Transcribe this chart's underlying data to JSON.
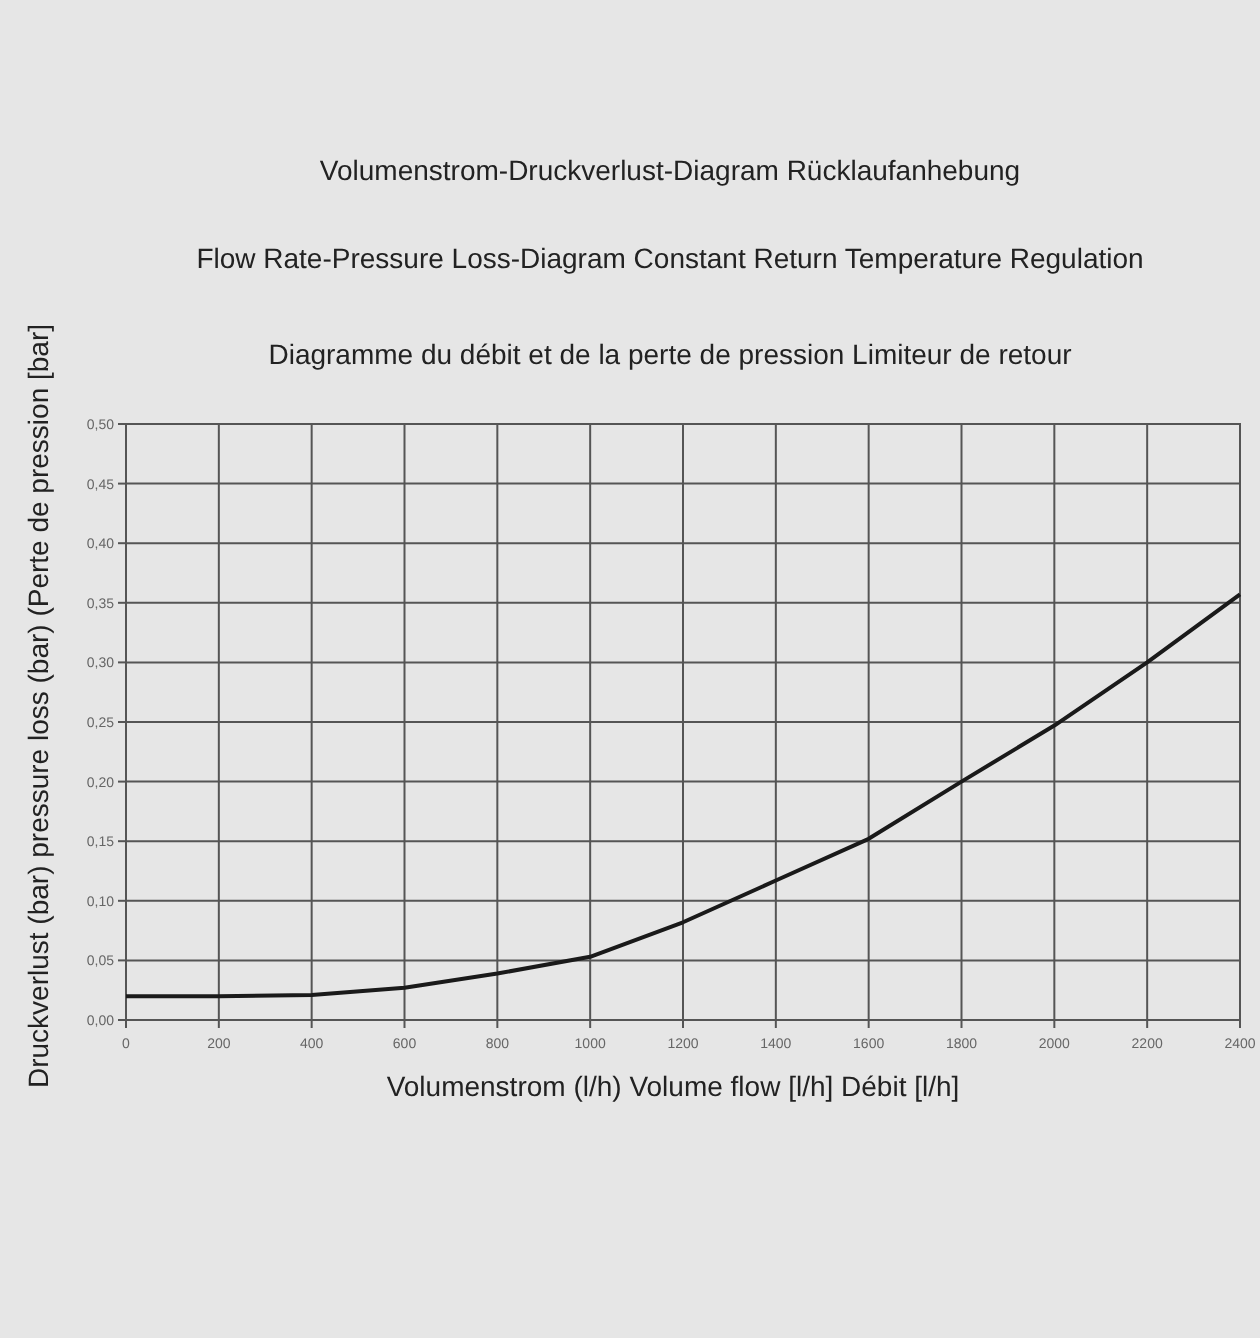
{
  "chart_data": {
    "type": "line",
    "title": "Volumenstrom-Druckverlust-Diagram Rücklaufanhebung",
    "subtitle": "Flow Rate-Pressure Loss-Diagram Constant Return Temperature Regulation",
    "annotations": [
      "Diagramme du débit et de la perte de pression Limiteur de retour"
    ],
    "xlabel": "Volumenstrom (l/h) Volume flow [l/h] Débit [l/h]",
    "ylabel": "Druckverlust (bar) pressure loss (bar) (Perte de pression [bar]",
    "x": [
      0,
      200,
      400,
      600,
      800,
      1000,
      1200,
      1400,
      1600,
      1800,
      2000,
      2200,
      2400
    ],
    "series": [
      {
        "color": "#1a1a1a",
        "values": [
          0.02,
          0.02,
          0.021,
          0.027,
          0.039,
          0.053,
          0.082,
          0.117,
          0.152,
          0.2,
          0.247,
          0.3,
          0.357
        ]
      }
    ],
    "xlim": [
      0,
      2400
    ],
    "xticks": [
      0,
      200,
      400,
      600,
      800,
      1000,
      1200,
      1400,
      1600,
      1800,
      2000,
      2200,
      2400
    ],
    "ylim": [
      0,
      0.5
    ],
    "yticks": [
      {
        "value": 0,
        "label": "0,00"
      },
      {
        "value": 0.05,
        "label": "0,05"
      },
      {
        "value": 0.1,
        "label": "0,10"
      },
      {
        "value": 0.15,
        "label": "0,15"
      },
      {
        "value": 0.2,
        "label": "0,20"
      },
      {
        "value": 0.25,
        "label": "0,25"
      },
      {
        "value": 0.3,
        "label": "0,30"
      },
      {
        "value": 0.35,
        "label": "0,35"
      },
      {
        "value": 0.4,
        "label": "0,40"
      },
      {
        "value": 0.45,
        "label": "0,45"
      },
      {
        "value": 0.5,
        "label": "0,50"
      }
    ],
    "grid": true,
    "marker": "none",
    "line_style": "solid"
  }
}
